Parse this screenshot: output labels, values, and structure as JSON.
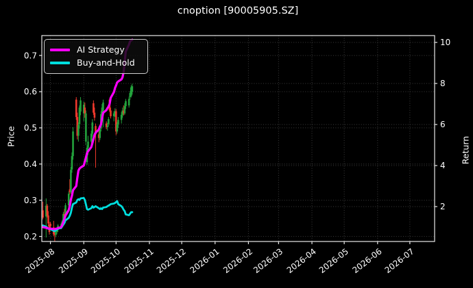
{
  "chart_data": {
    "type": "candlestick",
    "title": "cnoption [90005905.SZ]",
    "background": "#000000",
    "text_color": "#ffffff",
    "grid_color": "#3d3d3d",
    "spine_color": "#e8e8e8",
    "up_color": "#23a33c",
    "down_color": "#ef382c",
    "left_axis": {
      "label": "Price",
      "ticks": [
        0.2,
        0.3,
        0.4,
        0.5,
        0.6,
        0.7
      ],
      "tick_labels": [
        "0.2",
        "0.3",
        "0.4",
        "0.5",
        "0.6",
        "0.7"
      ],
      "range": [
        0.186,
        0.755
      ]
    },
    "right_axis": {
      "label": "Return",
      "ticks": [
        2,
        4,
        6,
        8,
        10
      ],
      "tick_labels": [
        "2",
        "4",
        "6",
        "8",
        "10"
      ],
      "range": [
        0.3,
        10.333
      ]
    },
    "x_axis": {
      "range": [
        "2025-07-24",
        "2026-07-24"
      ],
      "ticks": [
        "2025-08-01",
        "2025-09-01",
        "2025-10-01",
        "2025-11-01",
        "2025-12-01",
        "2026-01-01",
        "2026-02-01",
        "2026-03-01",
        "2026-04-01",
        "2026-05-01",
        "2026-06-01",
        "2026-07-01"
      ],
      "tick_labels": [
        "2025-08",
        "2025-09",
        "2025-10",
        "2025-11",
        "2025-12",
        "2026-01",
        "2026-02",
        "2026-03",
        "2026-04",
        "2026-05",
        "2026-06",
        "2026-07"
      ],
      "label_rotation_deg": 38
    },
    "grid": true,
    "legend_position": "upper left",
    "candles": {
      "dates": [
        "2025-07-25",
        "2025-07-28",
        "2025-07-29",
        "2025-07-30",
        "2025-07-31",
        "2025-08-01",
        "2025-08-04",
        "2025-08-05",
        "2025-08-06",
        "2025-08-07",
        "2025-08-08",
        "2025-08-11",
        "2025-08-12",
        "2025-08-13",
        "2025-08-14",
        "2025-08-15",
        "2025-08-18",
        "2025-08-19",
        "2025-08-20",
        "2025-08-21",
        "2025-08-22",
        "2025-08-25",
        "2025-08-26",
        "2025-08-27",
        "2025-08-28",
        "2025-08-29",
        "2025-09-01",
        "2025-09-02",
        "2025-09-03",
        "2025-09-04",
        "2025-09-05",
        "2025-09-08",
        "2025-09-09",
        "2025-09-10",
        "2025-09-11",
        "2025-09-12",
        "2025-09-15",
        "2025-09-16",
        "2025-09-17",
        "2025-09-18",
        "2025-09-19",
        "2025-09-22",
        "2025-09-23",
        "2025-09-24",
        "2025-09-25",
        "2025-09-26",
        "2025-09-29",
        "2025-09-30",
        "2025-10-01",
        "2025-10-02",
        "2025-10-03",
        "2025-10-06",
        "2025-10-07",
        "2025-10-08",
        "2025-10-09",
        "2025-10-10",
        "2025-10-13",
        "2025-10-14",
        "2025-10-15",
        "2025-10-16"
      ],
      "open": [
        0.272,
        0.255,
        0.285,
        0.258,
        0.232,
        0.235,
        0.225,
        0.206,
        0.204,
        0.212,
        0.218,
        0.228,
        0.234,
        0.24,
        0.262,
        0.258,
        0.286,
        0.33,
        0.322,
        0.385,
        0.422,
        0.578,
        0.53,
        0.478,
        0.51,
        0.545,
        0.54,
        0.556,
        0.462,
        0.405,
        0.445,
        0.462,
        0.484,
        0.568,
        0.542,
        0.505,
        0.482,
        0.472,
        0.498,
        0.538,
        0.548,
        0.512,
        0.502,
        0.51,
        0.578,
        0.548,
        0.532,
        0.54,
        0.546,
        0.49,
        0.51,
        0.522,
        0.536,
        0.548,
        0.54,
        0.56,
        0.562,
        0.585,
        0.588,
        0.6
      ],
      "high": [
        0.296,
        0.305,
        0.29,
        0.27,
        0.24,
        0.24,
        0.243,
        0.212,
        0.216,
        0.222,
        0.234,
        0.238,
        0.246,
        0.268,
        0.276,
        0.292,
        0.324,
        0.358,
        0.392,
        0.432,
        0.502,
        0.585,
        0.542,
        0.515,
        0.562,
        0.585,
        0.572,
        0.57,
        0.548,
        0.452,
        0.478,
        0.492,
        0.524,
        0.576,
        0.556,
        0.512,
        0.496,
        0.504,
        0.546,
        0.566,
        0.578,
        0.518,
        0.514,
        0.53,
        0.582,
        0.556,
        0.546,
        0.554,
        0.552,
        0.516,
        0.53,
        0.544,
        0.556,
        0.562,
        0.568,
        0.58,
        0.586,
        0.602,
        0.618,
        0.622
      ],
      "low": [
        0.247,
        0.197,
        0.252,
        0.228,
        0.205,
        0.222,
        0.201,
        0.186,
        0.198,
        0.206,
        0.212,
        0.22,
        0.226,
        0.234,
        0.252,
        0.254,
        0.278,
        0.316,
        0.318,
        0.376,
        0.412,
        0.522,
        0.468,
        0.462,
        0.498,
        0.535,
        0.518,
        0.528,
        0.452,
        0.398,
        0.425,
        0.452,
        0.476,
        0.536,
        0.52,
        0.39,
        0.46,
        0.466,
        0.49,
        0.524,
        0.502,
        0.496,
        0.492,
        0.504,
        0.544,
        0.526,
        0.518,
        0.53,
        0.48,
        0.484,
        0.5,
        0.512,
        0.528,
        0.534,
        0.536,
        0.552,
        0.556,
        0.578,
        0.584,
        0.592
      ],
      "close": [
        0.252,
        0.285,
        0.258,
        0.236,
        0.212,
        0.228,
        0.206,
        0.204,
        0.212,
        0.218,
        0.23,
        0.234,
        0.242,
        0.262,
        0.258,
        0.286,
        0.318,
        0.322,
        0.384,
        0.422,
        0.49,
        0.53,
        0.478,
        0.508,
        0.556,
        0.576,
        0.564,
        0.54,
        0.54,
        0.445,
        0.462,
        0.484,
        0.515,
        0.542,
        0.528,
        0.482,
        0.472,
        0.496,
        0.538,
        0.556,
        0.57,
        0.502,
        0.506,
        0.524,
        0.548,
        0.532,
        0.54,
        0.546,
        0.49,
        0.51,
        0.522,
        0.536,
        0.548,
        0.54,
        0.56,
        0.574,
        0.58,
        0.596,
        0.612,
        0.615
      ]
    },
    "series": [
      {
        "name": "AI Strategy",
        "color": "#ff00ff",
        "axis": "return",
        "line_width": 3.2,
        "values": [
          1.0,
          0.97,
          0.95,
          0.93,
          0.93,
          0.93,
          0.9,
          0.9,
          0.92,
          0.93,
          0.95,
          1.0,
          1.1,
          1.25,
          1.4,
          1.56,
          1.83,
          2.03,
          2.34,
          2.54,
          2.8,
          3.0,
          3.4,
          3.75,
          3.85,
          3.9,
          4.0,
          4.2,
          4.4,
          4.6,
          4.7,
          4.9,
          5.1,
          5.3,
          5.5,
          5.6,
          5.76,
          5.9,
          6.0,
          6.3,
          6.57,
          6.7,
          6.8,
          6.87,
          7.0,
          7.3,
          7.58,
          7.78,
          7.9,
          8.05,
          8.1,
          8.2,
          8.3,
          8.55,
          9.05,
          9.55,
          9.9,
          10.05,
          10.1,
          10.13
        ]
      },
      {
        "name": "Buy-and-Hold",
        "color": "#00dede",
        "axis": "return",
        "line_width": 2.8,
        "values": [
          1.08,
          1.02,
          0.98,
          0.94,
          0.9,
          0.9,
          0.82,
          0.8,
          0.85,
          0.88,
          0.92,
          0.96,
          1.04,
          1.12,
          1.2,
          1.33,
          1.45,
          1.55,
          1.7,
          1.95,
          2.12,
          2.2,
          2.32,
          2.36,
          2.32,
          2.4,
          2.42,
          2.32,
          2.1,
          1.88,
          1.85,
          1.92,
          2.02,
          1.95,
          1.98,
          2.02,
          1.92,
          1.88,
          1.92,
          1.88,
          1.95,
          1.98,
          2.02,
          2.05,
          2.08,
          2.12,
          2.15,
          2.18,
          2.22,
          2.27,
          2.12,
          2.02,
          1.95,
          1.85,
          1.78,
          1.62,
          1.58,
          1.65,
          1.73,
          1.73
        ]
      }
    ]
  }
}
